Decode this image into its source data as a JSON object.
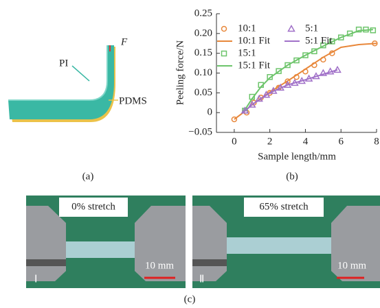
{
  "panel_a": {
    "force_label": "F",
    "pi_label": "PI",
    "pdms_label": "PDMS",
    "caption": "(a)"
  },
  "chart_data": {
    "type": "scatter",
    "caption": "(b)",
    "x_label": "Sample length/mm",
    "y_label": "Peeling force/N",
    "xlim": [
      -1,
      8
    ],
    "xticks": [
      0,
      2,
      4,
      6,
      8
    ],
    "ylim": [
      -0.05,
      0.25
    ],
    "yticks": [
      {
        "value": -0.05,
        "label": "−0.05"
      },
      0,
      0.05,
      {
        "value": 0.1,
        "label": "0.10"
      },
      0.15,
      {
        "value": 0.2,
        "label": "0.20"
      },
      0.25
    ],
    "series": [
      {
        "name": "10:1",
        "color": "#e8873a",
        "style": "marker",
        "marker": "circle",
        "x": [
          0,
          0.7,
          1.1,
          1.5,
          2.0,
          2.5,
          3.0,
          3.5,
          4.0,
          4.5,
          5.0,
          5.5,
          7.9
        ],
        "values": [
          -0.017,
          0.0,
          0.025,
          0.038,
          0.05,
          0.063,
          0.079,
          0.09,
          0.104,
          0.12,
          0.134,
          0.15,
          0.175
        ]
      },
      {
        "name": "10:1 Fit",
        "color": "#e8873a",
        "style": "line",
        "x": [
          0,
          0.5,
          1,
          2,
          3,
          4,
          5,
          6,
          7,
          8
        ],
        "values": [
          -0.017,
          0.0,
          0.02,
          0.052,
          0.08,
          0.11,
          0.14,
          0.165,
          0.172,
          0.175
        ]
      },
      {
        "name": "15:1",
        "color": "#6cc46a",
        "style": "marker",
        "marker": "square",
        "x": [
          0.6,
          1.0,
          1.5,
          2.0,
          2.5,
          3.0,
          3.5,
          4.0,
          4.5,
          5.0,
          5.5,
          6.0,
          6.5,
          7.0,
          7.4,
          7.8
        ],
        "values": [
          0.005,
          0.04,
          0.07,
          0.09,
          0.105,
          0.12,
          0.132,
          0.145,
          0.155,
          0.17,
          0.18,
          0.19,
          0.2,
          0.21,
          0.21,
          0.208
        ]
      },
      {
        "name": "15:1 Fit",
        "color": "#6cc46a",
        "style": "line",
        "x": [
          0.5,
          1,
          1.5,
          2,
          3,
          4,
          5,
          6,
          7,
          7.8
        ],
        "values": [
          0.0,
          0.035,
          0.065,
          0.088,
          0.12,
          0.145,
          0.168,
          0.19,
          0.207,
          0.21
        ]
      },
      {
        "name": "5:1",
        "color": "#a070c8",
        "style": "marker",
        "marker": "triangle",
        "x": [
          0.6,
          1.0,
          1.4,
          1.8,
          2.2,
          2.6,
          3.0,
          3.4,
          3.8,
          4.2,
          4.6,
          5.0,
          5.4,
          5.8
        ],
        "values": [
          0.005,
          0.02,
          0.035,
          0.045,
          0.055,
          0.063,
          0.07,
          0.075,
          0.08,
          0.086,
          0.092,
          0.1,
          0.104,
          0.108
        ]
      },
      {
        "name": "5:1 Fit",
        "color": "#a070c8",
        "style": "line",
        "x": [
          0.5,
          1,
          2,
          3,
          4,
          5,
          5.8
        ],
        "values": [
          0.0,
          0.02,
          0.05,
          0.07,
          0.083,
          0.097,
          0.108
        ]
      }
    ]
  },
  "panel_c": {
    "left_label": "0% stretch",
    "right_label": "65% stretch",
    "left_scale": "10 mm",
    "right_scale": "10 mm",
    "left_index": "Ⅰ",
    "right_index": "Ⅱ",
    "caption": "(c)"
  }
}
